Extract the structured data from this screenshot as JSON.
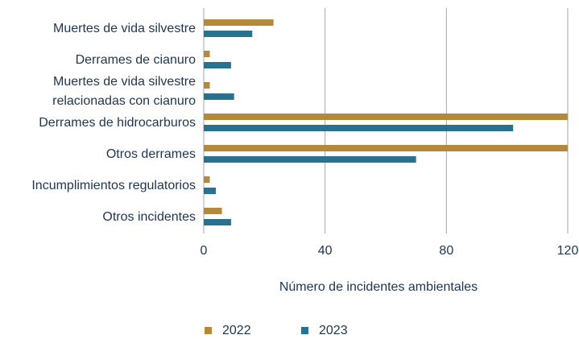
{
  "chart_data": {
    "type": "barh",
    "categories": [
      "Muertes de vida silvestre",
      "Derrames de cianuro",
      "Muertes de vida silvestre\nrelacionadas con cianuro",
      "Derrames de hidrocarburos",
      "Otros derrames",
      "Incumplimientos regulatorios",
      "Otros incidentes"
    ],
    "series": [
      {
        "name": "2022",
        "color": "#b5893a",
        "values": [
          23,
          2,
          2,
          120,
          120,
          2,
          6
        ]
      },
      {
        "name": "2023",
        "color": "#28718f",
        "values": [
          16,
          9,
          10,
          102,
          70,
          4,
          9
        ]
      }
    ],
    "xlabel": "Número de incidentes ambientales",
    "xlim": [
      0,
      120
    ],
    "xticks": [
      0,
      40,
      80,
      120
    ],
    "grid": true,
    "legend": "bottom"
  }
}
